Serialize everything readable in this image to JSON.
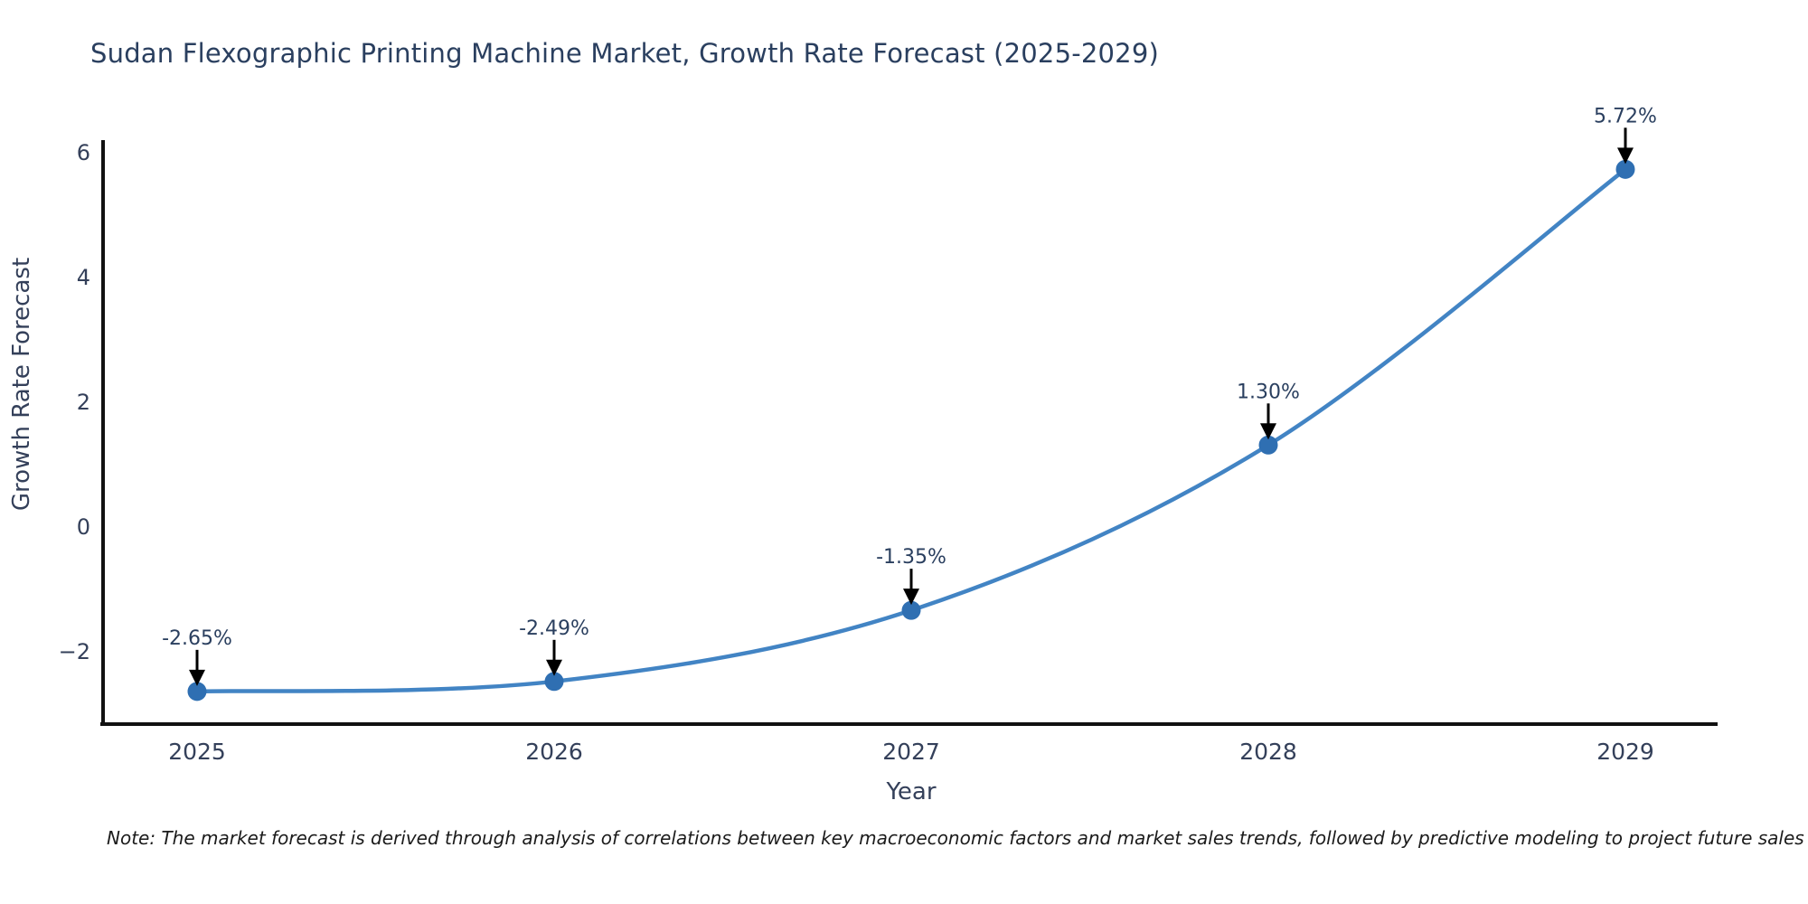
{
  "title": "Sudan Flexographic Printing Machine Market, Growth Rate Forecast (2025-2029)",
  "note": "Note: The market forecast is derived through analysis of correlations between key macroeconomic factors and market sales trends, followed by predictive modeling to project future sales",
  "chart_data": {
    "type": "line",
    "line_shape": "spline",
    "title": "Sudan Flexographic Printing Machine Market, Growth Rate Forecast (2025-2029)",
    "xlabel": "Year",
    "ylabel": "Growth Rate Forecast",
    "x": [
      2025,
      2026,
      2027,
      2028,
      2029
    ],
    "values": [
      -2.65,
      -2.49,
      -1.35,
      1.3,
      5.72
    ],
    "point_labels": [
      "-2.65%",
      "-2.49%",
      "-1.35%",
      "1.30%",
      "5.72%"
    ],
    "xtick_labels": [
      "2025",
      "2026",
      "2027",
      "2028",
      "2029"
    ],
    "yticks": [
      6,
      4,
      2,
      0,
      -2
    ],
    "ytick_labels": [
      "6",
      "4",
      "2",
      "0",
      "−2"
    ],
    "ylim": [
      -3.2,
      6.4
    ],
    "xlim": [
      2024.73,
      2029.26
    ],
    "grid": false,
    "legend": "none",
    "markers": true,
    "annotations_have_arrows": true,
    "colors": {
      "line": "#4284c4",
      "marker": "#2f6fb2",
      "axis": "#111111",
      "title_text": "#2a3f5f",
      "tick_text": "#34405a",
      "annotation_text": "#2a3f5f",
      "arrow": "#000000",
      "note_text": "#1b1b1b",
      "background": "#ffffff"
    }
  }
}
